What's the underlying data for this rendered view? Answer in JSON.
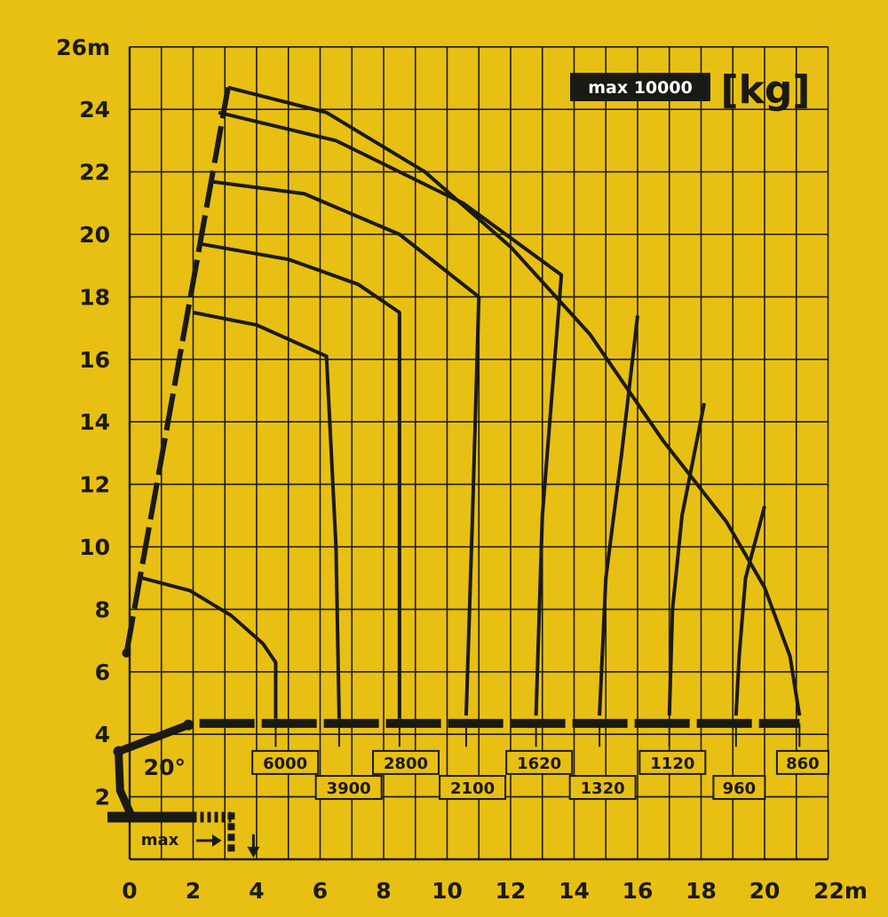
{
  "chart_data": {
    "type": "line",
    "title": "",
    "xlabel": "",
    "ylabel": "",
    "xlim": [
      0,
      22
    ],
    "ylim": [
      0,
      26
    ],
    "x_ticks": [
      "0",
      "2",
      "4",
      "6",
      "8",
      "10",
      "12",
      "14",
      "16",
      "18",
      "20",
      "22m"
    ],
    "y_ticks": [
      "2",
      "4",
      "6",
      "8",
      "10",
      "12",
      "14",
      "16",
      "18",
      "20",
      "22",
      "24",
      "26m"
    ],
    "grid": true,
    "badge": "max 10000",
    "unit": "[kg]",
    "angle_label": "20°",
    "max_label": "max",
    "colors": {
      "background": "#e8bf13",
      "ink": "#1a1a14",
      "badge_bg": "#1a1a14",
      "badge_text": "#ffffff"
    },
    "boom_line": [
      [
        -0.1,
        6.6
      ],
      [
        3.1,
        24.7
      ]
    ],
    "envelope": [
      [
        3.1,
        24.7
      ],
      [
        6.2,
        23.9
      ],
      [
        9.3,
        22.0
      ],
      [
        12.0,
        19.6
      ],
      [
        14.5,
        16.8
      ],
      [
        16.8,
        13.4
      ],
      [
        18.8,
        10.8
      ],
      [
        20.0,
        8.7
      ],
      [
        20.8,
        6.5
      ],
      [
        21.1,
        4.6
      ]
    ],
    "series": [
      {
        "name": "6000",
        "values": [
          [
            0.4,
            9.0
          ],
          [
            1.9,
            8.6
          ],
          [
            3.2,
            7.8
          ],
          [
            4.2,
            6.9
          ],
          [
            4.6,
            6.3
          ],
          [
            4.6,
            4.5
          ]
        ]
      },
      {
        "name": "3900",
        "values": [
          [
            2.0,
            17.5
          ],
          [
            4.0,
            17.1
          ],
          [
            6.2,
            16.1
          ],
          [
            6.5,
            10.0
          ],
          [
            6.6,
            4.5
          ]
        ]
      },
      {
        "name": "2800",
        "values": [
          [
            2.2,
            19.7
          ],
          [
            5.0,
            19.2
          ],
          [
            7.2,
            18.4
          ],
          [
            8.5,
            17.5
          ],
          [
            8.5,
            4.5
          ]
        ]
      },
      {
        "name": "2100",
        "values": [
          [
            2.5,
            21.7
          ],
          [
            5.5,
            21.3
          ],
          [
            8.5,
            20.0
          ],
          [
            11.0,
            18.0
          ],
          [
            10.8,
            11.0
          ],
          [
            10.6,
            4.6
          ]
        ]
      },
      {
        "name": "1620",
        "values": [
          [
            2.8,
            23.9
          ],
          [
            6.5,
            23.0
          ],
          [
            10.5,
            21.0
          ],
          [
            13.6,
            18.7
          ],
          [
            13.0,
            11.0
          ],
          [
            12.8,
            4.6
          ]
        ]
      },
      {
        "name": "1320",
        "values": [
          [
            16.0,
            17.4
          ],
          [
            15.5,
            13.0
          ],
          [
            15.0,
            9.0
          ],
          [
            14.8,
            4.6
          ]
        ]
      },
      {
        "name": "1120",
        "values": [
          [
            18.1,
            14.6
          ],
          [
            17.4,
            11.0
          ],
          [
            17.1,
            8.0
          ],
          [
            17.0,
            4.6
          ]
        ]
      },
      {
        "name": "960",
        "values": [
          [
            20.0,
            11.3
          ],
          [
            19.4,
            9.0
          ],
          [
            19.2,
            6.5
          ],
          [
            19.1,
            4.6
          ]
        ]
      },
      {
        "name": "860",
        "values": [
          [
            21.1,
            4.6
          ]
        ]
      }
    ],
    "load_labels": [
      {
        "text": "6000",
        "x": 4.9,
        "y": 3.1
      },
      {
        "text": "3900",
        "x": 6.9,
        "y": 2.3
      },
      {
        "text": "2800",
        "x": 8.7,
        "y": 3.1
      },
      {
        "text": "2100",
        "x": 10.8,
        "y": 2.3
      },
      {
        "text": "1620",
        "x": 12.9,
        "y": 3.1
      },
      {
        "text": "1320",
        "x": 14.9,
        "y": 2.3
      },
      {
        "text": "1120",
        "x": 17.1,
        "y": 3.1
      },
      {
        "text": "960",
        "x": 19.2,
        "y": 2.3
      },
      {
        "text": "860",
        "x": 21.2,
        "y": 3.1
      }
    ]
  }
}
